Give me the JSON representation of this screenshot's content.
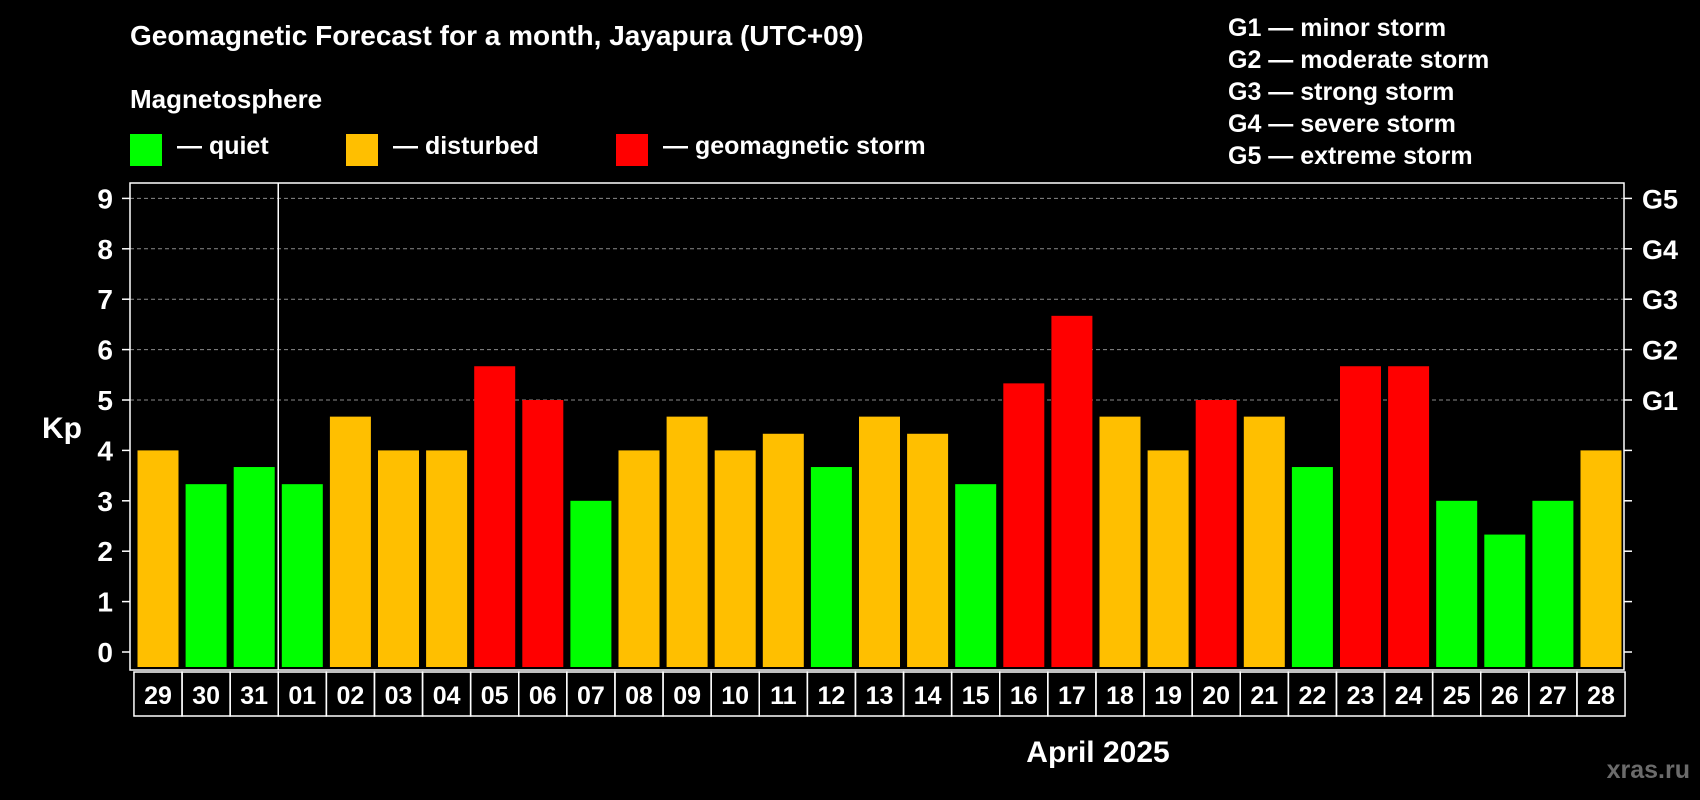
{
  "header": {
    "title": "Geomagnetic Forecast for a month, Jayapura (UTC+09)",
    "magnetosphere_heading": "Magnetosphere"
  },
  "legend": {
    "quiet": {
      "label": "— quiet",
      "color": "#00ff00"
    },
    "disturbed": {
      "label": "— disturbed",
      "color": "#ffbf00"
    },
    "storm": {
      "label": "— geomagnetic storm",
      "color": "#ff0000"
    }
  },
  "storm_scale": [
    "G1 — minor storm",
    "G2 — moderate storm",
    "G3 — strong storm",
    "G4 — severe storm",
    "G5 — extreme storm"
  ],
  "footer": {
    "month": "April 2025",
    "watermark": "xras.ru"
  },
  "chart_data": {
    "type": "bar",
    "title": "Geomagnetic Forecast for a month, Jayapura (UTC+09)",
    "xlabel": "April 2025",
    "ylabel": "Kp",
    "ylim": [
      0,
      9
    ],
    "yticks": [
      "0",
      "1",
      "2",
      "3",
      "4",
      "5",
      "6",
      "7",
      "8",
      "9"
    ],
    "right_axis_labels": [
      {
        "kp": 5,
        "label": "G1"
      },
      {
        "kp": 6,
        "label": "G2"
      },
      {
        "kp": 7,
        "label": "G3"
      },
      {
        "kp": 8,
        "label": "G4"
      },
      {
        "kp": 9,
        "label": "G5"
      }
    ],
    "grid": "dashed horizontal at Kp 5-9",
    "month_divider_after": "31",
    "categories": [
      "29",
      "30",
      "31",
      "01",
      "02",
      "03",
      "04",
      "05",
      "06",
      "07",
      "08",
      "09",
      "10",
      "11",
      "12",
      "13",
      "14",
      "15",
      "16",
      "17",
      "18",
      "19",
      "20",
      "21",
      "22",
      "23",
      "24",
      "25",
      "26",
      "27",
      "28"
    ],
    "values": [
      4.0,
      3.33,
      3.67,
      3.33,
      4.67,
      4.0,
      4.0,
      5.67,
      5.0,
      3.0,
      4.0,
      4.67,
      4.0,
      4.33,
      3.67,
      4.67,
      4.33,
      3.33,
      5.33,
      6.67,
      4.67,
      4.0,
      5.0,
      4.67,
      3.67,
      5.67,
      5.67,
      3.0,
      2.33,
      3.0,
      4.0
    ],
    "status": [
      "disturbed",
      "quiet",
      "quiet",
      "quiet",
      "disturbed",
      "disturbed",
      "disturbed",
      "storm",
      "storm",
      "quiet",
      "disturbed",
      "disturbed",
      "disturbed",
      "disturbed",
      "quiet",
      "disturbed",
      "disturbed",
      "quiet",
      "storm",
      "storm",
      "disturbed",
      "disturbed",
      "storm",
      "disturbed",
      "quiet",
      "storm",
      "storm",
      "quiet",
      "quiet",
      "quiet",
      "disturbed"
    ]
  }
}
